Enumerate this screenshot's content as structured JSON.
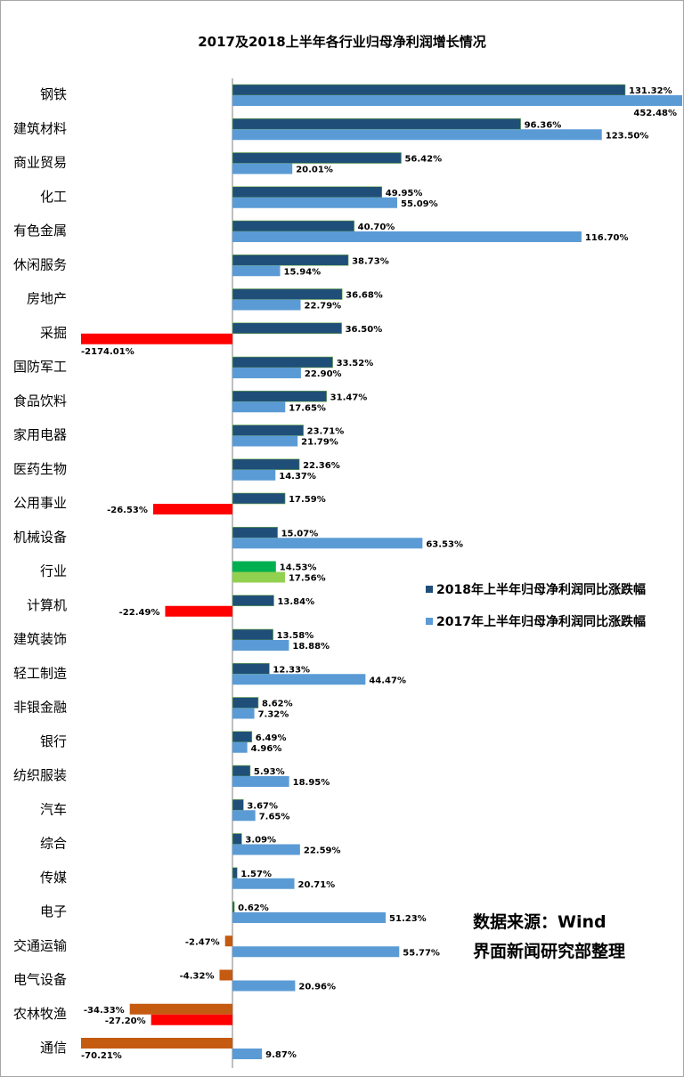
{
  "chart_data": {
    "type": "bar",
    "orientation": "horizontal",
    "title": "2017及2018上半年各行业归母净利润增长情况",
    "categories": [
      "钢铁",
      "建筑材料",
      "商业贸易",
      "化工",
      "有色金属",
      "休闲服务",
      "房地产",
      "采掘",
      "国防军工",
      "食品饮料",
      "家用电器",
      "医药生物",
      "公用事业",
      "机械设备",
      "行业",
      "计算机",
      "建筑装饰",
      "轻工制造",
      "非银金融",
      "银行",
      "纺织服装",
      "汽车",
      "综合",
      "传媒",
      "电子",
      "交通运输",
      "电气设备",
      "农林牧渔",
      "通信"
    ],
    "series": [
      {
        "name": "2018年上半年归母净利润同比涨跌幅",
        "color": "#1f4e79",
        "values": [
          131.32,
          96.36,
          56.42,
          49.95,
          40.7,
          38.73,
          36.68,
          36.5,
          33.52,
          31.47,
          23.71,
          22.36,
          17.59,
          15.07,
          14.53,
          13.84,
          13.58,
          12.33,
          8.62,
          6.49,
          5.93,
          3.67,
          3.09,
          1.57,
          0.62,
          -2.47,
          -4.32,
          -34.33,
          -70.21
        ],
        "labels": [
          "131.32%",
          "96.36%",
          "56.42%",
          "49.95%",
          "40.70%",
          "38.73%",
          "36.68%",
          "36.50%",
          "33.52%",
          "31.47%",
          "23.71%",
          "22.36%",
          "17.59%",
          "15.07%",
          "14.53%",
          "13.84%",
          "13.58%",
          "12.33%",
          "8.62%",
          "6.49%",
          "5.93%",
          "3.67%",
          "3.09%",
          "1.57%",
          "0.62%",
          "-2.47%",
          "-4.32%",
          "-34.33%",
          "-70.21%"
        ]
      },
      {
        "name": "2017年上半年归母净利润同比涨跌幅",
        "color": "#5b9bd5",
        "values": [
          452.48,
          123.5,
          20.01,
          55.09,
          116.7,
          15.94,
          22.79,
          -2174.01,
          22.9,
          17.65,
          21.79,
          14.37,
          -26.53,
          63.53,
          17.56,
          -22.49,
          18.88,
          44.47,
          7.32,
          4.96,
          18.95,
          7.65,
          22.59,
          20.71,
          51.23,
          55.77,
          20.96,
          -27.2,
          9.87
        ],
        "labels": [
          "452.48%",
          "123.50%",
          "20.01%",
          "55.09%",
          "116.70%",
          "15.94%",
          "22.79%",
          "-2174.01%",
          "22.90%",
          "17.65%",
          "21.79%",
          "14.37%",
          "-26.53%",
          "63.53%",
          "17.56%",
          "-22.49%",
          "18.88%",
          "44.47%",
          "7.32%",
          "4.96%",
          "18.95%",
          "7.65%",
          "22.59%",
          "20.71%",
          "51.23%",
          "55.77%",
          "20.96%",
          "-27.20%",
          "9.87%"
        ]
      }
    ],
    "highlight_colors": {
      "negative_2017": "#ff0000",
      "negative_2018": "#c55a11",
      "industry_2018": "#00b050",
      "industry_2017": "#92d050"
    },
    "x_clipped": true,
    "legend_position": "right-middle",
    "grid": false
  },
  "source": {
    "line1": "数据来源：Wind",
    "line2": "界面新闻研究部整理"
  }
}
